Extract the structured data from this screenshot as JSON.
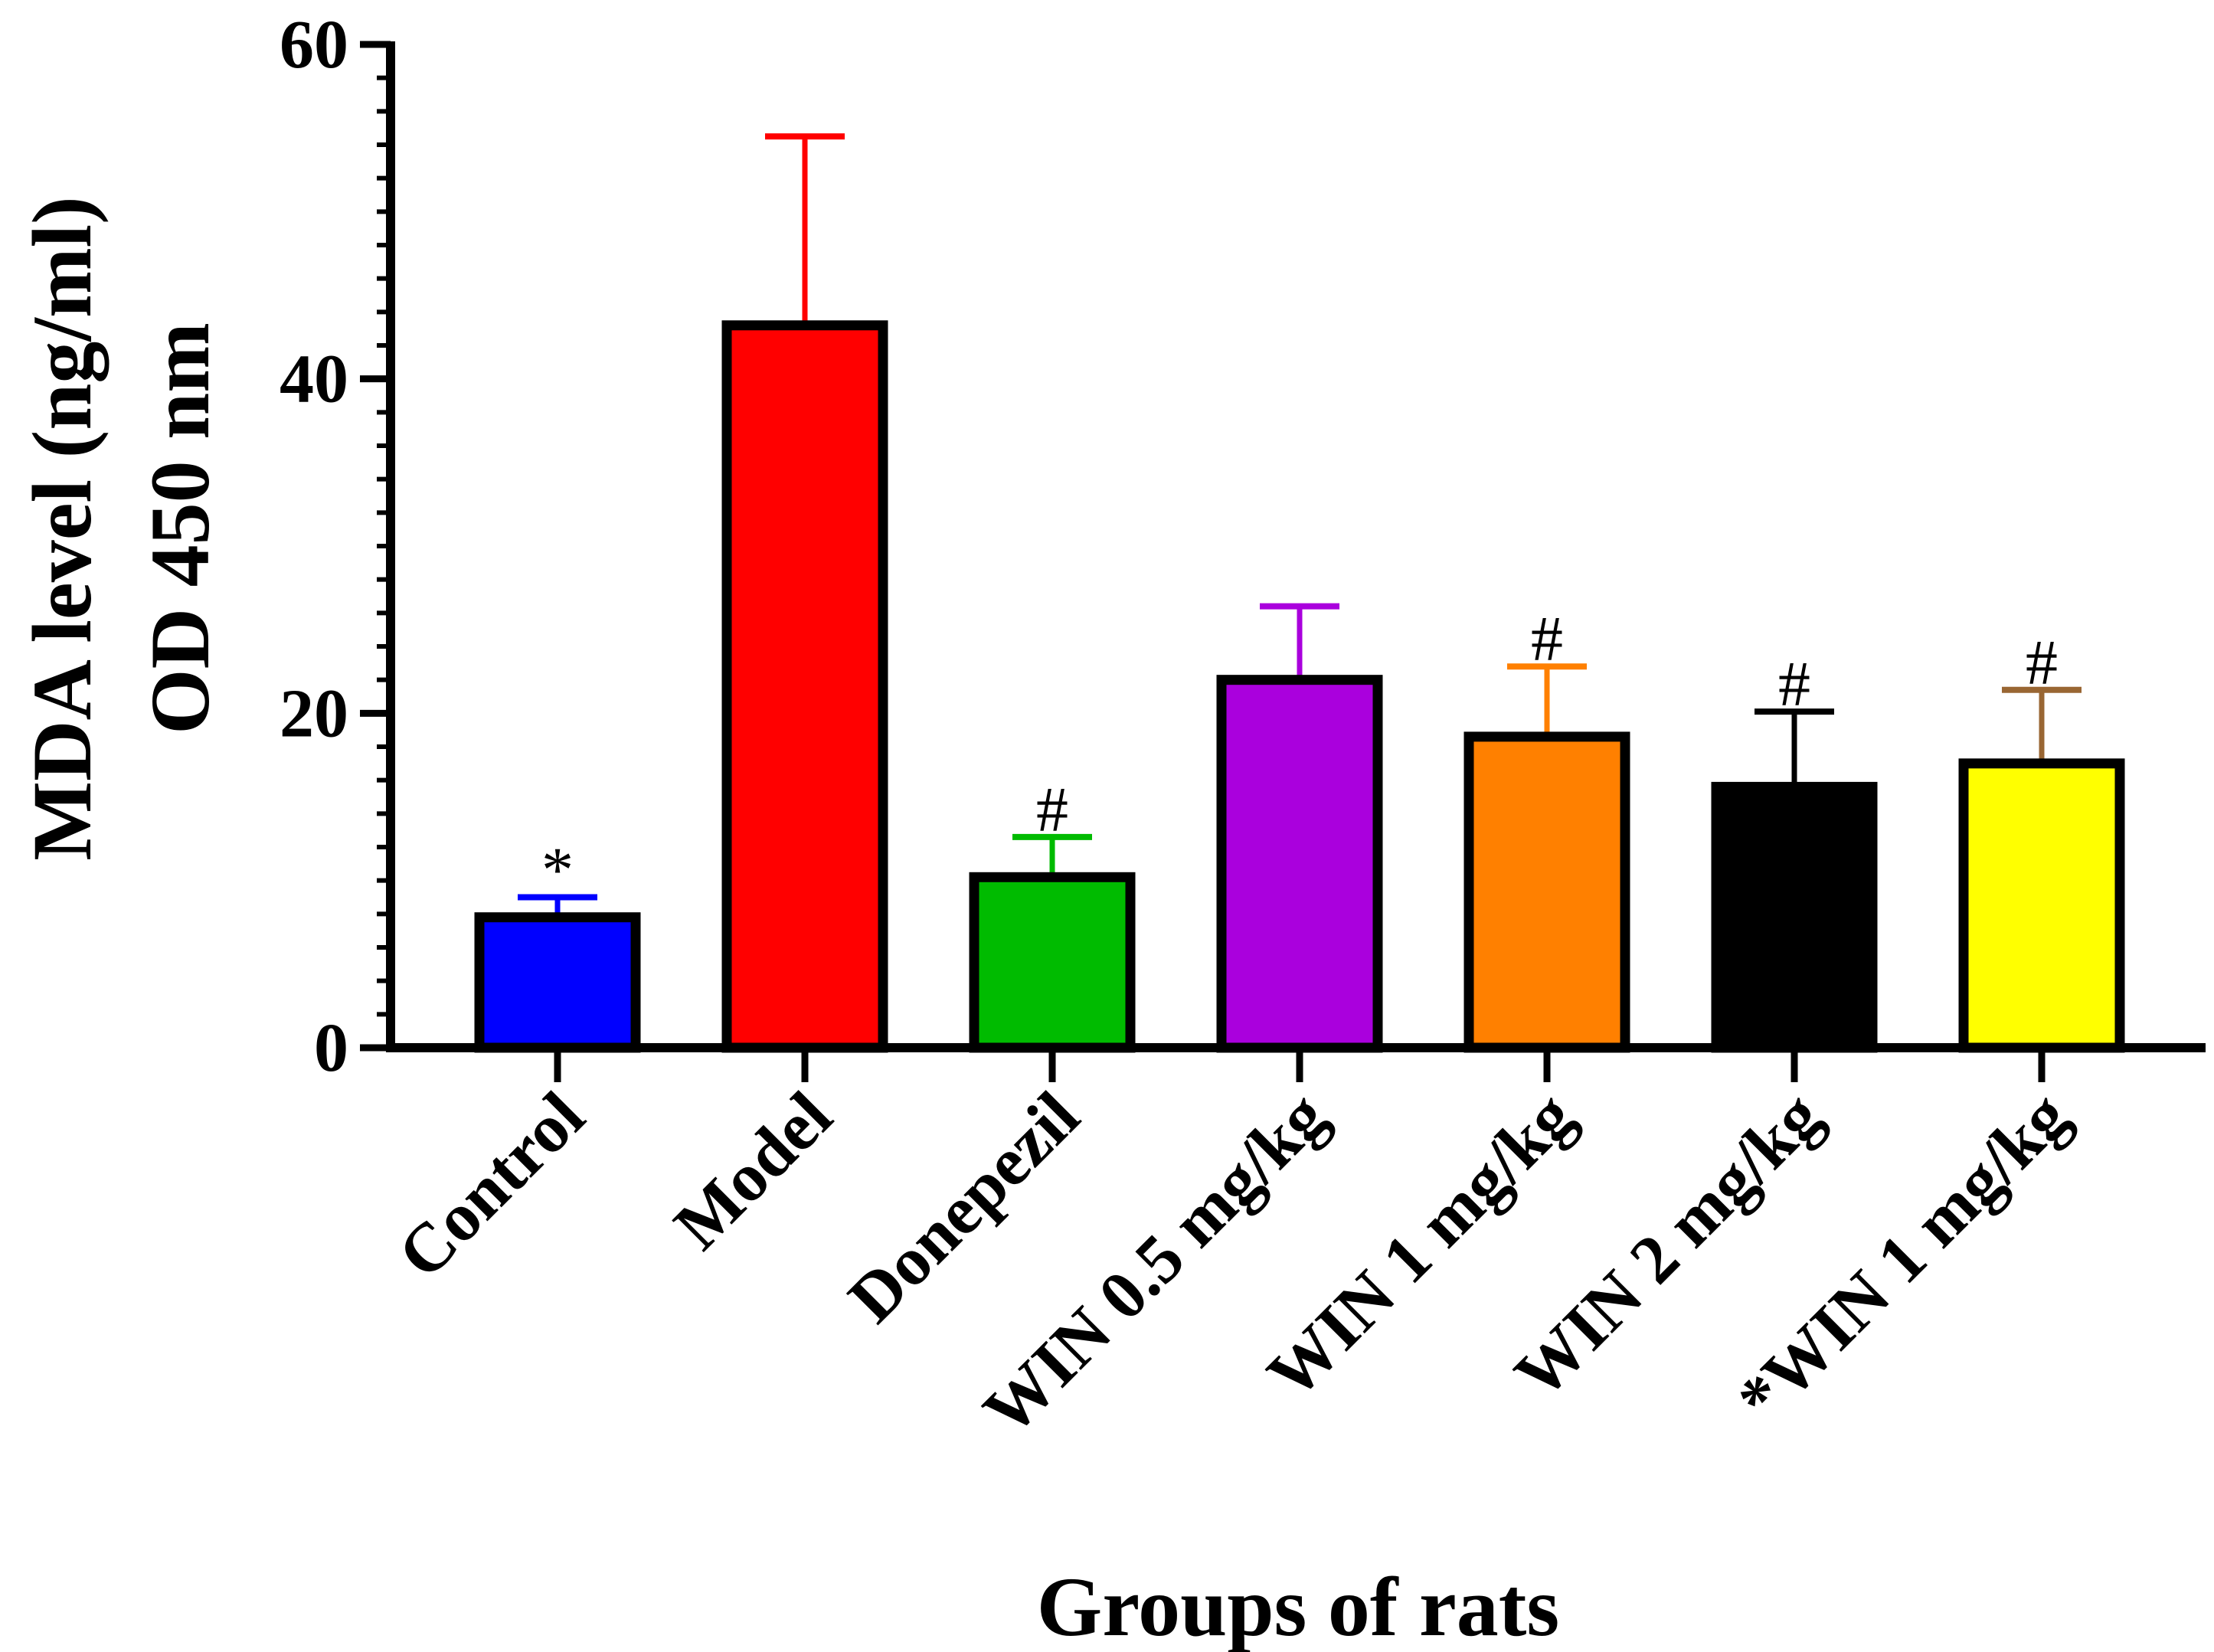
{
  "chart_data": {
    "type": "bar",
    "ylabel_line1": "MDA level (ng/ml)",
    "ylabel_line2": "OD 450 nm",
    "xlabel": "Groups of rats",
    "ylim": [
      0,
      60
    ],
    "yticks": [
      {
        "value": 0,
        "label": "0"
      },
      {
        "value": 20,
        "label": "20"
      },
      {
        "value": 40,
        "label": "40"
      },
      {
        "value": 60,
        "label": "60"
      }
    ],
    "minor_tick_step": 2,
    "bars": [
      {
        "category": "Control",
        "value": 7.8,
        "error": 1.2,
        "color": "#0000FF",
        "error_color": "#0000FF",
        "annotation": "*"
      },
      {
        "category": "Model",
        "value": 43.2,
        "error": 11.3,
        "color": "#FF0000",
        "error_color": "#FF0000",
        "annotation": ""
      },
      {
        "category": "Donepezil",
        "value": 10.2,
        "error": 2.4,
        "color": "#00BB00",
        "error_color": "#00BB00",
        "annotation": "#"
      },
      {
        "category": "WIN 0.5 mg/kg",
        "value": 22.0,
        "error": 4.4,
        "color": "#AA00DD",
        "error_color": "#AA00DD",
        "annotation": ""
      },
      {
        "category": "WIN 1 mg/kg",
        "value": 18.6,
        "error": 4.2,
        "color": "#FF8000",
        "error_color": "#FF8000",
        "annotation": "#"
      },
      {
        "category": "WIN 2 mg/kg",
        "value": 15.6,
        "error": 4.5,
        "color": "#000000",
        "error_color": "#000000",
        "annotation": "#"
      },
      {
        "category": "*WIN 1 mg/kg",
        "value": 17.0,
        "error": 4.4,
        "color": "#FFFF00",
        "error_color": "#996633",
        "annotation": "#"
      }
    ]
  }
}
